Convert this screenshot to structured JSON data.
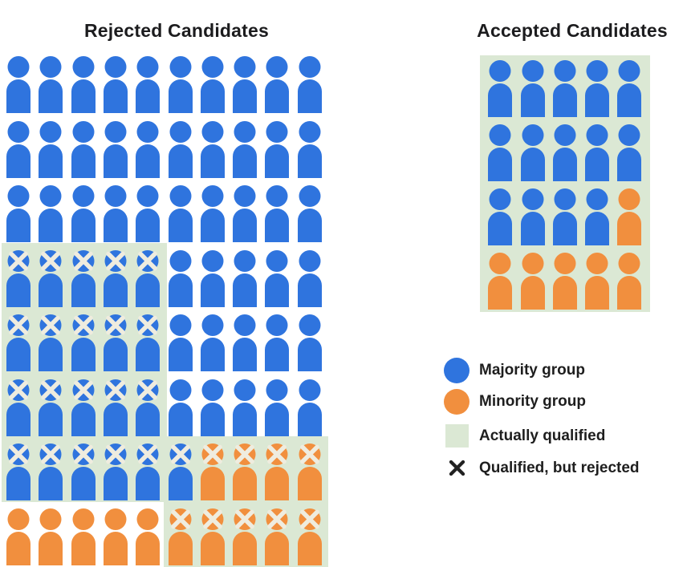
{
  "titles": {
    "rejected": "Rejected Candidates",
    "accepted": "Accepted Candidates"
  },
  "colors": {
    "majority": "#2F74DE",
    "minority": "#F18F3E",
    "qualified_bg": "#DBE8D4",
    "icon_x_mark": "#EFECDF",
    "legend_x": "#212121",
    "text": "#1E1E1E"
  },
  "codes": {
    "B": "majority person",
    "O": "minority person",
    "BX": "majority person, qualified but rejected",
    "OX": "minority person, qualified but rejected"
  },
  "rejected_grid": {
    "columns": 10,
    "rows": [
      [
        "B",
        "B",
        "B",
        "B",
        "B",
        "B",
        "B",
        "B",
        "B",
        "B"
      ],
      [
        "B",
        "B",
        "B",
        "B",
        "B",
        "B",
        "B",
        "B",
        "B",
        "B"
      ],
      [
        "B",
        "B",
        "B",
        "B",
        "B",
        "B",
        "B",
        "B",
        "B",
        "B"
      ],
      [
        "BX",
        "BX",
        "BX",
        "BX",
        "BX",
        "B",
        "B",
        "B",
        "B",
        "B"
      ],
      [
        "BX",
        "BX",
        "BX",
        "BX",
        "BX",
        "B",
        "B",
        "B",
        "B",
        "B"
      ],
      [
        "BX",
        "BX",
        "BX",
        "BX",
        "BX",
        "B",
        "B",
        "B",
        "B",
        "B"
      ],
      [
        "BX",
        "BX",
        "BX",
        "BX",
        "BX",
        "BX",
        "OX",
        "OX",
        "OX",
        "OX"
      ],
      [
        "O",
        "O",
        "O",
        "O",
        "O",
        "OX",
        "OX",
        "OX",
        "OX",
        "OX"
      ]
    ],
    "qualified_regions": [
      {
        "rows": [
          4,
          6
        ],
        "cols": [
          1,
          5
        ]
      },
      {
        "rows": [
          7,
          7
        ],
        "cols": [
          1,
          10
        ]
      },
      {
        "rows": [
          8,
          8
        ],
        "cols": [
          6,
          10
        ]
      }
    ]
  },
  "accepted_grid": {
    "columns": 5,
    "rows": [
      [
        "B",
        "B",
        "B",
        "B",
        "B"
      ],
      [
        "B",
        "B",
        "B",
        "B",
        "B"
      ],
      [
        "B",
        "B",
        "B",
        "B",
        "O"
      ],
      [
        "O",
        "O",
        "O",
        "O",
        "O"
      ]
    ],
    "qualified_regions": [
      {
        "rows": [
          1,
          4
        ],
        "cols": [
          1,
          5
        ]
      }
    ]
  },
  "legend": {
    "items": [
      {
        "type": "circle",
        "color_key": "majority",
        "label": "Majority group"
      },
      {
        "type": "circle",
        "color_key": "minority",
        "label": "Minority group"
      },
      {
        "type": "square",
        "color_key": "qualified_bg",
        "label": "Actually qualified"
      },
      {
        "type": "x",
        "color_key": "legend_x",
        "label": "Qualified, but rejected"
      }
    ]
  }
}
